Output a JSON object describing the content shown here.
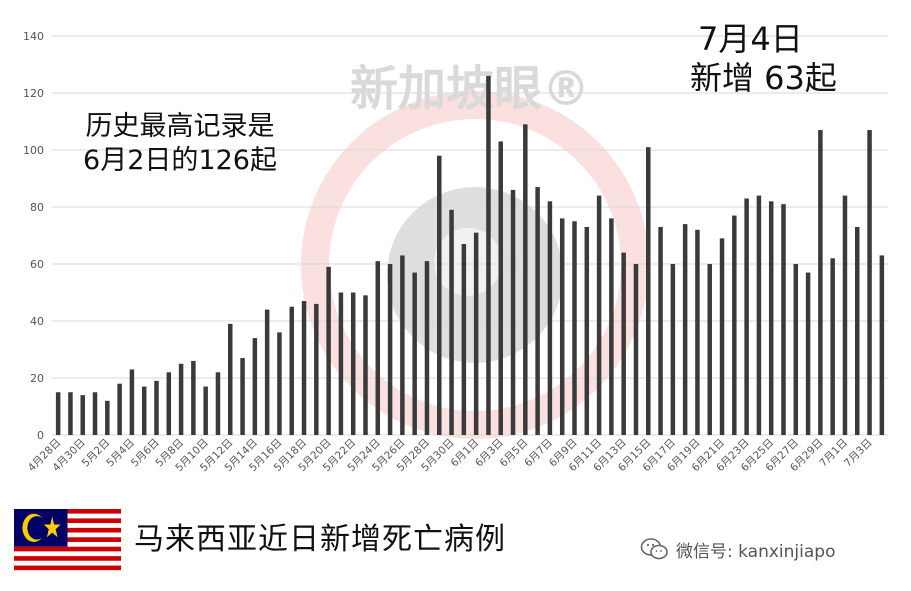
{
  "chart_data": {
    "type": "bar",
    "title": "",
    "xlabel": "",
    "ylabel": "",
    "ylim": [
      0,
      140
    ],
    "yticks": [
      0,
      20,
      40,
      60,
      80,
      100,
      120,
      140
    ],
    "grid": true,
    "bar_color": "#3a3a3a",
    "grid_color": "#d9d9d9",
    "categories": [
      "4月28日",
      "4月29日",
      "4月30日",
      "5月1日",
      "5月2日",
      "5月3日",
      "5月4日",
      "5月5日",
      "5月6日",
      "5月7日",
      "5月8日",
      "5月9日",
      "5月10日",
      "5月11日",
      "5月12日",
      "5月13日",
      "5月14日",
      "5月15日",
      "5月16日",
      "5月17日",
      "5月18日",
      "5月19日",
      "5月20日",
      "5月21日",
      "5月22日",
      "5月23日",
      "5月24日",
      "5月25日",
      "5月26日",
      "5月27日",
      "5月28日",
      "5月29日",
      "5月30日",
      "5月31日",
      "6月1日",
      "6月2日",
      "6月3日",
      "6月4日",
      "6月5日",
      "6月6日",
      "6月7日",
      "6月8日",
      "6月9日",
      "6月10日",
      "6月11日",
      "6月12日",
      "6月13日",
      "6月14日",
      "6月15日",
      "6月16日",
      "6月17日",
      "6月18日",
      "6月19日",
      "6月20日",
      "6月21日",
      "6月22日",
      "6月23日",
      "6月24日",
      "6月25日",
      "6月26日",
      "6月27日",
      "6月28日",
      "6月29日",
      "6月30日",
      "7月1日",
      "7月2日",
      "7月3日",
      "7月4日"
    ],
    "x_tick_labels": [
      "4月28日",
      "4月30日",
      "5月2日",
      "5月4日",
      "5月6日",
      "5月8日",
      "5月10日",
      "5月12日",
      "5月14日",
      "5月16日",
      "5月18日",
      "5月20日",
      "5月22日",
      "5月24日",
      "5月26日",
      "5月28日",
      "5月30日",
      "6月1日",
      "6月3日",
      "6月5日",
      "6月7日",
      "6月9日",
      "6月11日",
      "6月13日",
      "6月15日",
      "6月17日",
      "6月19日",
      "6月21日",
      "6月23日",
      "6月25日",
      "6月27日",
      "6月29日",
      "7月1日",
      "7月3日"
    ],
    "values": [
      15,
      15,
      14,
      15,
      12,
      18,
      23,
      17,
      19,
      22,
      25,
      26,
      17,
      22,
      39,
      27,
      34,
      44,
      36,
      45,
      47,
      46,
      59,
      50,
      50,
      49,
      61,
      60,
      63,
      57,
      61,
      98,
      79,
      67,
      71,
      126,
      103,
      86,
      109,
      87,
      82,
      76,
      75,
      73,
      84,
      76,
      64,
      60,
      101,
      73,
      60,
      74,
      72,
      60,
      69,
      77,
      83,
      84,
      82,
      81,
      60,
      57,
      107,
      62,
      84,
      73,
      107,
      63
    ]
  },
  "annotations": {
    "record_line1": "历史最高记录是",
    "record_line2": "6月2日的126起",
    "latest_line1": "7月4日",
    "latest_line2": "新增 63起"
  },
  "watermark": {
    "text": "新加坡眼®"
  },
  "caption": "马来西亚近日新增死亡病例",
  "flag": {
    "name": "malaysia-flag",
    "colors": {
      "red": "#cc0001",
      "white": "#ffffff",
      "blue": "#010066",
      "yellow": "#ffcc00"
    }
  },
  "wechat": {
    "icon": "wechat-icon",
    "text": "微信号: kanxinjiapo"
  }
}
